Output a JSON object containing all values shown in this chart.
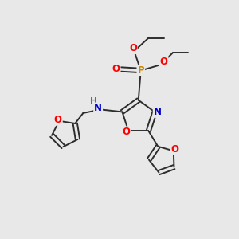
{
  "background_color": "#e8e8e8",
  "bond_color": "#2d2d2d",
  "atom_colors": {
    "O": "#ff0000",
    "N": "#0000cc",
    "P": "#cc8800",
    "H": "#607070",
    "C": "#2d2d2d"
  },
  "figsize": [
    3.0,
    3.0
  ],
  "dpi": 100,
  "lw": 1.4,
  "fs": 8.5
}
